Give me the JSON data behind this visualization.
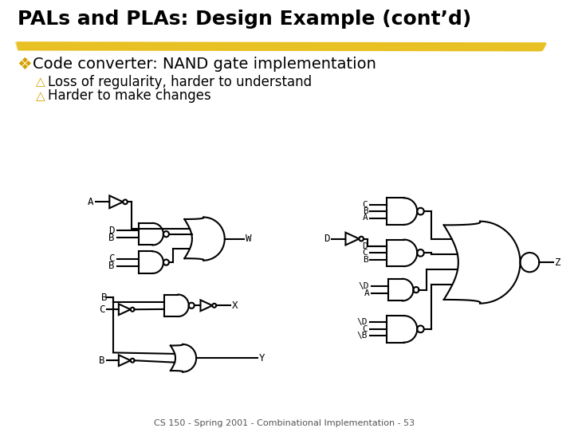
{
  "title": "PALs and PLAs: Design Example (cont’d)",
  "bullet_z": "❖ Code converter: NAND gate implementation",
  "bullet_y1": "△Loss of regularity, harder to understand",
  "bullet_y2": "△Harder to make changes",
  "footer": "CS 150 - Spring 2001 - Combinational Implementation - 53",
  "bg_color": "#ffffff",
  "title_color": "#000000",
  "highlight_color_main": "#e8c020",
  "highlight_color_edge": "#c8a000",
  "text_color": "#000000",
  "bullet_marker_color": "#d4a000",
  "gate_lw": 1.5,
  "line_lw": 1.5
}
